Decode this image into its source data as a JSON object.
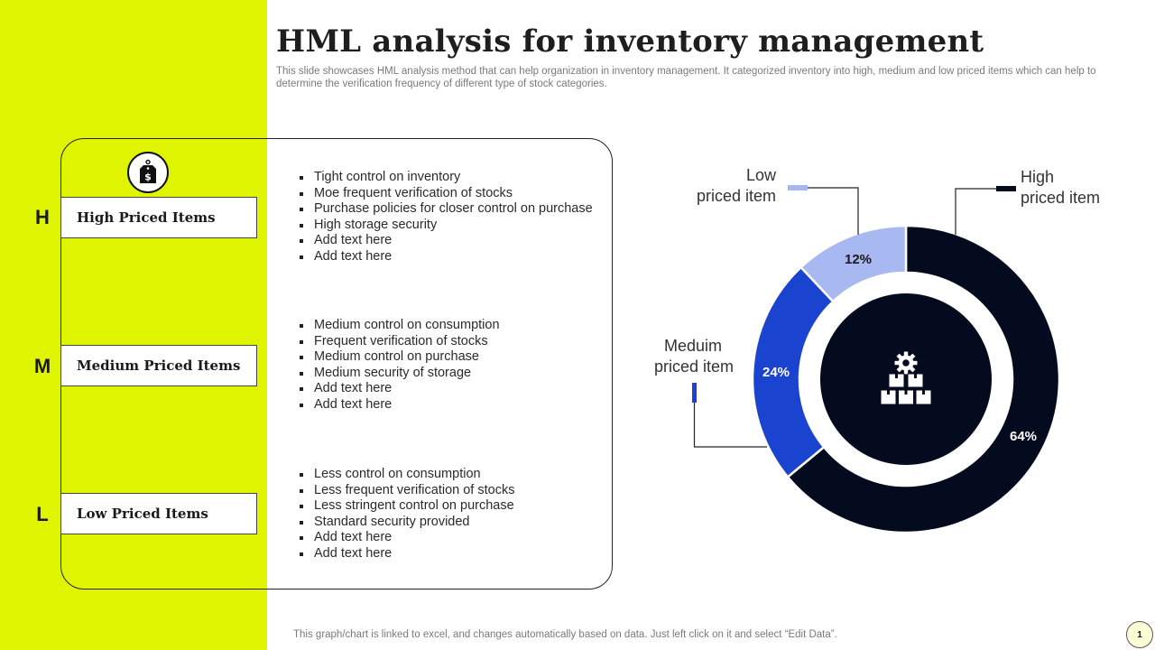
{
  "slide": {
    "title": "HML analysis for inventory management",
    "subtitle": "This slide showcases HML analysis method that can help organization in inventory management. It categorized inventory into high, medium and low priced items which can help to determine the verification frequency of different type of stock categories.",
    "footer": "This graph/chart is linked to excel, and changes automatically based on data. Just left click on it and select “Edit Data”.",
    "page_number": "1"
  },
  "categories": [
    {
      "letter": "H",
      "label": "High Priced Items",
      "bullets": [
        "Tight control on inventory",
        "Moe frequent verification of stocks",
        "Purchase policies for closer control on purchase",
        "High storage security",
        "Add text here",
        "Add text here"
      ]
    },
    {
      "letter": "M",
      "label": "Medium Priced Items",
      "bullets": [
        "Medium control on consumption",
        "Frequent verification of stocks",
        "Medium control on purchase",
        "Medium security of storage",
        "Add text here",
        "Add text here"
      ]
    },
    {
      "letter": "L",
      "label": "Low Priced Items",
      "bullets": [
        "Less control on consumption",
        "Less frequent verification of stocks",
        "Less stringent control on purchase",
        "Standard security provided",
        "Add text here",
        "Add text here"
      ]
    }
  ],
  "icons": {
    "tag": "price-tag-icon",
    "center": "gear-boxes-icon"
  },
  "colors": {
    "accent": "#dff400",
    "high": "#050b1e",
    "medium": "#1a44cf",
    "low": "#a8b8f0"
  },
  "chart_data": {
    "type": "pie",
    "variant": "donut",
    "slices": [
      {
        "name": "High priced item",
        "value": 64,
        "label": "64%",
        "color": "#050b1e"
      },
      {
        "name": "Meduim priced item",
        "value": 24,
        "label": "24%",
        "color": "#1a44cf"
      },
      {
        "name": "Low priced item",
        "value": 12,
        "label": "12%",
        "color": "#a8b8f0"
      }
    ],
    "legend_lines": {
      "high": [
        "High",
        "priced item"
      ],
      "medium": [
        "Meduim",
        "priced item"
      ],
      "low": [
        "Low",
        "priced item"
      ]
    }
  }
}
